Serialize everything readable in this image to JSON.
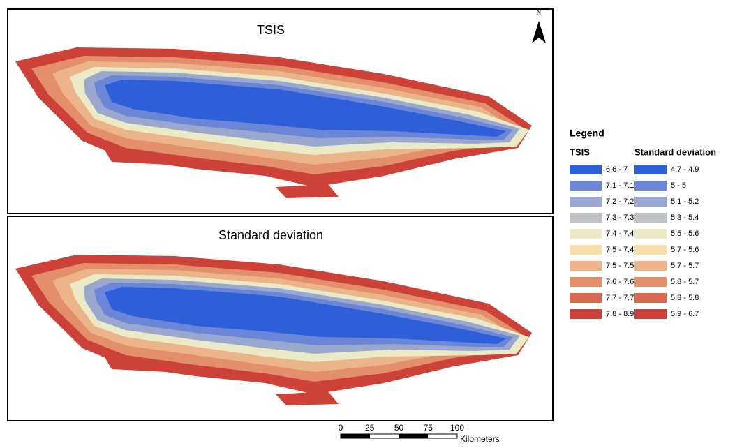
{
  "panels": [
    {
      "title": "TSIS"
    },
    {
      "title": "Standard deviation"
    }
  ],
  "north_label": "N",
  "legend": {
    "title": "Legend",
    "columns": [
      {
        "heading": "TSIS",
        "items": [
          {
            "label": "6.6 - 7",
            "color": "#2f5fd8"
          },
          {
            "label": "7.1 - 7.1",
            "color": "#6b86d6"
          },
          {
            "label": "7.2 - 7.2",
            "color": "#9aa8d0"
          },
          {
            "label": "7.3 - 7.3",
            "color": "#bfc4c8"
          },
          {
            "label": "7.4 - 7.4",
            "color": "#ebeac6"
          },
          {
            "label": "7.5 - 7.4",
            "color": "#f6dfaa"
          },
          {
            "label": "7.5 - 7.5",
            "color": "#ecb48a"
          },
          {
            "label": "7.6 - 7.6",
            "color": "#e38f6c"
          },
          {
            "label": "7.7 - 7.7",
            "color": "#d96a52"
          },
          {
            "label": "7.8 - 8.9",
            "color": "#cc4238"
          }
        ]
      },
      {
        "heading": "Standard deviation",
        "items": [
          {
            "label": "4.7 - 4.9",
            "color": "#2f5fd8"
          },
          {
            "label": "5 - 5",
            "color": "#6b86d6"
          },
          {
            "label": "5.1 - 5.2",
            "color": "#9aa8d0"
          },
          {
            "label": "5.3 - 5.4",
            "color": "#bfc4c8"
          },
          {
            "label": "5.5 - 5.6",
            "color": "#ebeac6"
          },
          {
            "label": "5.7 - 5.6",
            "color": "#f6dfaa"
          },
          {
            "label": "5.7 - 5.7",
            "color": "#ecb48a"
          },
          {
            "label": "5.8 - 5.7",
            "color": "#e38f6c"
          },
          {
            "label": "5.8 - 5.8",
            "color": "#d96a52"
          },
          {
            "label": "5.9 - 6.7",
            "color": "#cc4238"
          }
        ]
      }
    ]
  },
  "scale_bar": {
    "ticks": [
      0,
      25,
      50,
      75,
      100
    ],
    "unit": "Kilometers"
  }
}
